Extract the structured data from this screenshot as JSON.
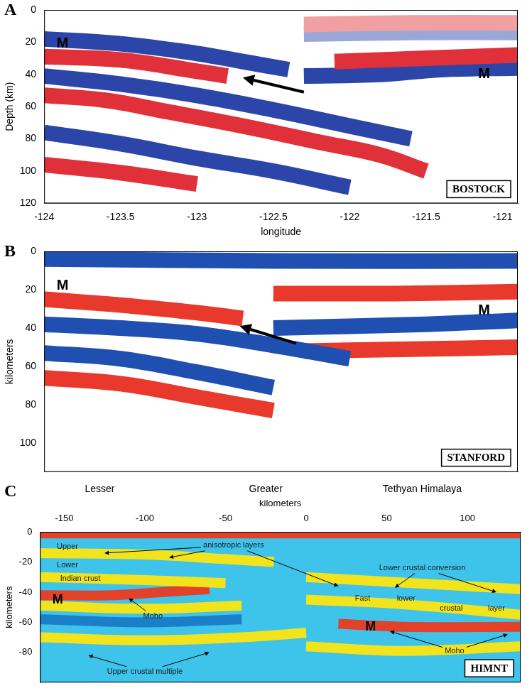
{
  "chart_data": [
    {
      "type": "line",
      "panel": "A",
      "label": "BOSTOCK",
      "xlabel": "longitude",
      "ylabel": "Depth (km)",
      "xlim": [
        -124,
        -120.9
      ],
      "xticks": [
        -124,
        -123.5,
        -123,
        -122.5,
        -122,
        -121.5,
        -121
      ],
      "ylim": [
        120,
        0
      ],
      "yticks": [
        0,
        20,
        40,
        60,
        80,
        100,
        120
      ],
      "series": [
        {
          "color": "#2b45a8",
          "x": [
            -124,
            -123.5,
            -123,
            -122.7,
            -122.4
          ],
          "values": [
            18,
            21,
            27,
            32,
            37
          ]
        },
        {
          "color": "#e0303a",
          "x": [
            -124,
            -123.5,
            -123,
            -122.8
          ],
          "values": [
            29,
            31,
            38,
            41
          ]
        },
        {
          "color": "#2b45a8",
          "x": [
            -124,
            -123.5,
            -123,
            -122.5,
            -122,
            -121.6
          ],
          "values": [
            41,
            46,
            53,
            62,
            72,
            80
          ]
        },
        {
          "color": "#e0303a",
          "x": [
            -124,
            -123.6,
            -123.2,
            -122.7,
            -122.2,
            -121.8,
            -121.5
          ],
          "values": [
            53,
            56,
            63,
            72,
            82,
            90,
            100
          ]
        },
        {
          "color": "#2b45a8",
          "x": [
            -124,
            -123.5,
            -123,
            -122.5,
            -122
          ],
          "values": [
            76,
            83,
            92,
            100,
            110
          ]
        },
        {
          "color": "#e0303a",
          "x": [
            -124,
            -123.5,
            -123
          ],
          "values": [
            96,
            101,
            108
          ]
        },
        {
          "color": "#e0303a",
          "x": [
            -122.1,
            -121.5,
            -120.9
          ],
          "values": [
            32,
            30,
            28
          ]
        },
        {
          "color": "#2b45a8",
          "x": [
            -122.3,
            -121.8,
            -121.4,
            -120.9
          ],
          "values": [
            41,
            40,
            37,
            36
          ]
        },
        {
          "color": "#f0a0a0",
          "x": [
            -122.3,
            -121.6,
            -120.9
          ],
          "values": [
            9,
            8,
            8
          ]
        },
        {
          "color": "#9aa8d8",
          "x": [
            -122.3,
            -121.6,
            -120.9
          ],
          "values": [
            15,
            14,
            14
          ]
        }
      ],
      "annotations": [
        {
          "text": "M",
          "x": -123.88,
          "y": 21
        },
        {
          "text": "M",
          "x": -121.12,
          "y": 40
        }
      ],
      "arrows": [
        {
          "from": [
            -122.3,
            51
          ],
          "to": [
            -122.7,
            42
          ]
        }
      ]
    },
    {
      "type": "line",
      "panel": "B",
      "label": "STANFORD",
      "ylabel": "kilometers",
      "tick_labels": "y",
      "xlim": [
        -124,
        -120.9
      ],
      "ylim": [
        115,
        0
      ],
      "yticks": [
        0,
        20,
        40,
        60,
        80,
        100
      ],
      "series": [
        {
          "color": "#1f4fb0",
          "x": [
            -124,
            -122.5,
            -120.9
          ],
          "values": [
            4,
            5,
            5
          ]
        },
        {
          "color": "#e8392c",
          "x": [
            -124,
            -123.5,
            -123,
            -122.7
          ],
          "values": [
            25,
            28,
            32,
            35
          ]
        },
        {
          "color": "#1f4fb0",
          "x": [
            -124,
            -123.5,
            -123,
            -122.5,
            -122
          ],
          "values": [
            38,
            40,
            43,
            49,
            56
          ]
        },
        {
          "color": "#1f4fb0",
          "x": [
            -124,
            -123.5,
            -123,
            -122.5
          ],
          "values": [
            53,
            56,
            63,
            71
          ]
        },
        {
          "color": "#e8392c",
          "x": [
            -124,
            -123.5,
            -123,
            -122.5
          ],
          "values": [
            66,
            69,
            76,
            83
          ]
        },
        {
          "color": "#e8392c",
          "x": [
            -122.5,
            -121.7,
            -120.9
          ],
          "values": [
            22,
            22,
            21
          ]
        },
        {
          "color": "#1f4fb0",
          "x": [
            -122.5,
            -121.5,
            -120.9
          ],
          "values": [
            40,
            38,
            36
          ]
        },
        {
          "color": "#e8392c",
          "x": [
            -122.3,
            -121.6,
            -120.9
          ],
          "values": [
            52,
            51,
            50
          ]
        }
      ],
      "annotations": [
        {
          "text": "M",
          "x": -123.88,
          "y": 18
        },
        {
          "text": "M",
          "x": -121.12,
          "y": 31
        }
      ],
      "arrows": [
        {
          "from": [
            -122.35,
            48
          ],
          "to": [
            -122.72,
            39
          ]
        }
      ]
    },
    {
      "type": "line",
      "panel": "C",
      "label": "HIMNT",
      "xlabel": "kilometers",
      "ylabel": "kilometers",
      "xlim": [
        -165,
        133
      ],
      "xticks": [
        -150,
        -100,
        -50,
        0,
        50,
        100
      ],
      "ylim": [
        -100,
        0
      ],
      "yticks": [
        0,
        -20,
        -40,
        -60,
        -80
      ],
      "regions": [
        {
          "text": "Lesser",
          "x": -128
        },
        {
          "text": "Greater",
          "x": -25
        },
        {
          "text": "Tethyan Himalaya",
          "x": 72
        }
      ],
      "series": [
        {
          "color": "#e2412a",
          "x": [
            -165,
            0,
            133
          ],
          "values": [
            -1,
            -1,
            -1
          ]
        },
        {
          "color": "#f2e41c",
          "x": [
            -165,
            -100,
            -50,
            -20
          ],
          "values": [
            -14,
            -15,
            -18,
            -20
          ]
        },
        {
          "color": "#f2e41c",
          "x": [
            -165,
            -100,
            -50
          ],
          "values": [
            -30,
            -32,
            -34
          ]
        },
        {
          "color": "#e2412a",
          "x": [
            -165,
            -120,
            -90,
            -60
          ],
          "values": [
            -42,
            -42,
            -40,
            -38
          ]
        },
        {
          "color": "#f2e41c",
          "x": [
            -165,
            -100,
            -40
          ],
          "values": [
            -49,
            -51,
            -49
          ]
        },
        {
          "color": "#1a7fc8",
          "x": [
            -165,
            -100,
            -40
          ],
          "values": [
            -58,
            -60,
            -58
          ]
        },
        {
          "color": "#f2e41c",
          "x": [
            -165,
            -100,
            -40,
            0
          ],
          "values": [
            -70,
            -72,
            -70,
            -67
          ]
        },
        {
          "color": "#f2e41c",
          "x": [
            0,
            50,
            133
          ],
          "values": [
            -30,
            -33,
            -38
          ]
        },
        {
          "color": "#f2e41c",
          "x": [
            0,
            60,
            133
          ],
          "values": [
            -45,
            -48,
            -55
          ]
        },
        {
          "color": "#e2412a",
          "x": [
            20,
            60,
            133
          ],
          "values": [
            -61,
            -63,
            -63
          ]
        },
        {
          "color": "#f2e41c",
          "x": [
            0,
            60,
            133
          ],
          "values": [
            -76,
            -79,
            -76
          ]
        }
      ],
      "annotations": [
        {
          "text": "Upper",
          "x": -148,
          "y": -10
        },
        {
          "text": "Lower",
          "x": -148,
          "y": -22
        },
        {
          "text": "Indian crust",
          "x": -140,
          "y": -31
        },
        {
          "text": "M",
          "x": -154,
          "y": -45
        },
        {
          "text": "Moho",
          "x": -95,
          "y": -56,
          "arrows": [
            [
              -110,
              -44
            ]
          ]
        },
        {
          "text": "anisotropic layers",
          "x": -45,
          "y": -9,
          "arrows": [
            [
              -125,
              -14
            ],
            [
              -85,
              -17
            ],
            [
              20,
              -36
            ]
          ]
        },
        {
          "text": "Lower crustal conversion",
          "x": 72,
          "y": -24,
          "arrows": [
            [
              55,
              -37
            ],
            [
              118,
              -40
            ]
          ]
        },
        {
          "text": "Fast",
          "x": 35,
          "y": -44
        },
        {
          "text": "lower",
          "x": 62,
          "y": -44
        },
        {
          "text": "crustal",
          "x": 90,
          "y": -51
        },
        {
          "text": "layer",
          "x": 118,
          "y": -51
        },
        {
          "text": "M",
          "x": 40,
          "y": -63
        },
        {
          "text": "Moho",
          "x": 92,
          "y": -79,
          "arrows": [
            [
              52,
              -66
            ],
            [
              125,
              -68
            ]
          ]
        },
        {
          "text": "Upper crustal multiple",
          "x": -100,
          "y": -93,
          "arrows": [
            [
              -135,
              -82
            ],
            [
              -60,
              -80
            ]
          ]
        }
      ]
    }
  ]
}
